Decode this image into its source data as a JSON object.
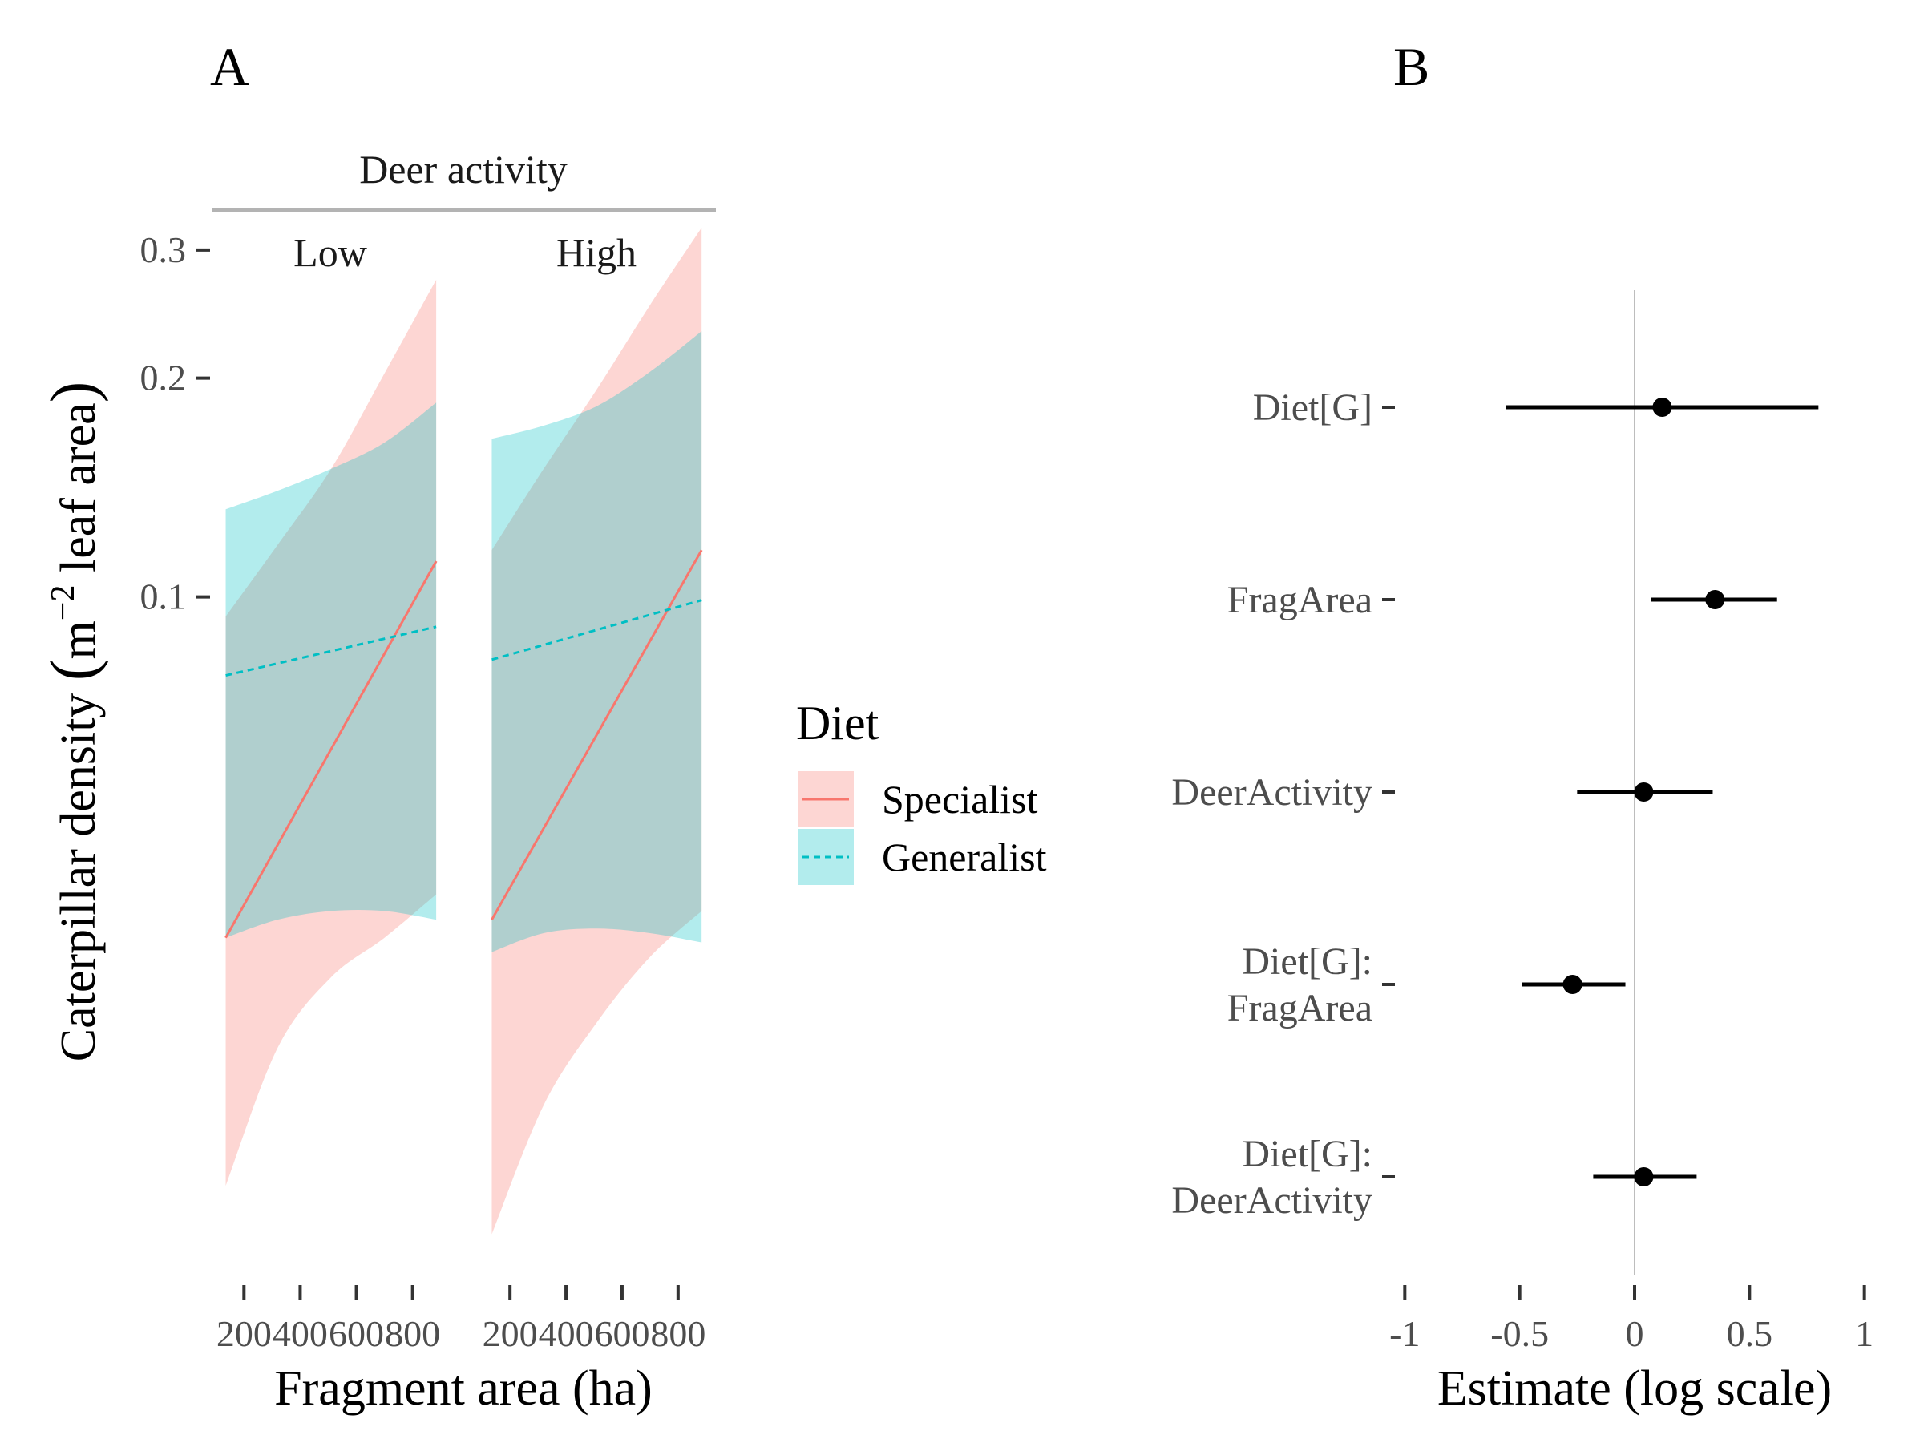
{
  "panels": {
    "a_letter": "A",
    "b_letter": "B"
  },
  "colors": {
    "specialist": "#F8766D",
    "generalist": "#00BFC4",
    "specialist_band": "#F8766D",
    "generalist_band": "#00BFC4",
    "point": "#000000",
    "zero_line": "#bdbdbd",
    "strip_line": "#b3b3b3"
  },
  "chart_data": [
    {
      "type": "line",
      "panel": "A",
      "strip_title": "Deer activity",
      "facets": [
        "Low",
        "High"
      ],
      "xlabel": "Fragment area (ha)",
      "ylabel_main": "Caterpillar density ",
      "ylabel_paren_open": "(",
      "ylabel_unit": "m",
      "ylabel_exp": "−2",
      "ylabel_rest": " leaf area",
      "ylabel_paren_close": ")",
      "xlim": [
        85,
        935
      ],
      "x_ticks": [
        200,
        400,
        600,
        800
      ],
      "x_tick_labels": [
        "200",
        "400",
        "600",
        "800"
      ],
      "y_scale": "log10",
      "ylim": [
        0.012,
        0.36
      ],
      "y_ticks": [
        0.1,
        0.2,
        0.3
      ],
      "y_tick_labels": [
        "0.1",
        "0.2",
        "0.3"
      ],
      "legend": {
        "title": "Diet",
        "position": "right",
        "entries": [
          "Specialist",
          "Generalist"
        ]
      },
      "series": [
        {
          "name": "Specialist",
          "facet": "Low",
          "x": [
            135,
            884
          ],
          "fit": [
            0.034,
            0.112
          ],
          "band_x": [
            135,
            320,
            510,
            700,
            884
          ],
          "band_lower": [
            0.0155,
            0.024,
            0.03,
            0.034,
            0.039
          ],
          "band_upper": [
            0.094,
            0.118,
            0.15,
            0.203,
            0.273
          ]
        },
        {
          "name": "Generalist",
          "facet": "Low",
          "x": [
            135,
            884
          ],
          "fit": [
            0.078,
            0.091
          ],
          "band_x": [
            135,
            320,
            510,
            700,
            884
          ],
          "band_lower": [
            0.034,
            0.036,
            0.037,
            0.037,
            0.036
          ],
          "band_upper": [
            0.132,
            0.14,
            0.15,
            0.163,
            0.185
          ]
        },
        {
          "name": "Specialist",
          "facet": "High",
          "x": [
            135,
            884
          ],
          "fit": [
            0.036,
            0.116
          ],
          "band_x": [
            135,
            320,
            510,
            700,
            884
          ],
          "band_lower": [
            0.0133,
            0.02,
            0.026,
            0.032,
            0.037
          ],
          "band_upper": [
            0.116,
            0.15,
            0.193,
            0.252,
            0.322
          ]
        },
        {
          "name": "Generalist",
          "facet": "High",
          "x": [
            135,
            884
          ],
          "fit": [
            0.082,
            0.099
          ],
          "band_x": [
            135,
            320,
            510,
            700,
            884
          ],
          "band_lower": [
            0.0325,
            0.0345,
            0.035,
            0.0345,
            0.0335
          ],
          "band_upper": [
            0.165,
            0.172,
            0.183,
            0.204,
            0.232
          ]
        }
      ],
      "grid": false
    },
    {
      "type": "scatter",
      "panel": "B",
      "xlabel": "Estimate (log scale)",
      "xlim": [
        -1.05,
        1.05
      ],
      "x_ticks": [
        -1,
        -0.5,
        0,
        0.5,
        1
      ],
      "x_tick_labels": [
        "-1",
        "-0.5",
        "0",
        "0.5",
        "1"
      ],
      "reference_line": 0,
      "categories": [
        [
          "Diet[G]"
        ],
        [
          "FragArea"
        ],
        [
          "DeerActivity"
        ],
        [
          "Diet[G]:",
          "FragArea"
        ],
        [
          "Diet[G]:",
          "DeerActivity"
        ]
      ],
      "estimates": [
        0.12,
        0.35,
        0.04,
        -0.27,
        0.04
      ],
      "ci_low": [
        -0.56,
        0.07,
        -0.25,
        -0.49,
        -0.18
      ],
      "ci_high": [
        0.8,
        0.62,
        0.34,
        -0.04,
        0.27
      ],
      "grid": false
    }
  ]
}
